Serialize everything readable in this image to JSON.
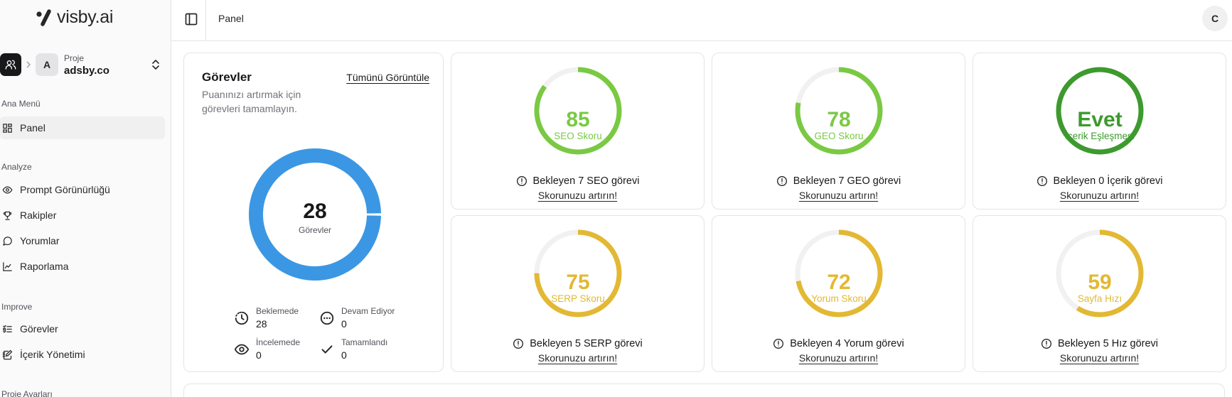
{
  "brand": {
    "logo_text": "visby.ai"
  },
  "project": {
    "caption": "Proje",
    "name": "adsby.co",
    "avatar_letter": "A"
  },
  "sidebar": {
    "sections": [
      {
        "label": "Ana Menü",
        "items": [
          {
            "label": "Panel",
            "icon": "dashboard-icon",
            "active": true
          }
        ]
      },
      {
        "label": "Analyze",
        "items": [
          {
            "label": "Prompt Görünürlüğü",
            "icon": "eye-icon"
          },
          {
            "label": "Rakipler",
            "icon": "trophy-icon"
          },
          {
            "label": "Yorumlar",
            "icon": "message-icon"
          },
          {
            "label": "Raporlama",
            "icon": "chart-icon"
          }
        ]
      },
      {
        "label": "Improve",
        "items": [
          {
            "label": "Görevler",
            "icon": "list-todo-icon"
          },
          {
            "label": "İçerik Yönetimi",
            "icon": "notebook-pen-icon"
          }
        ]
      },
      {
        "label": "Proje Ayarları",
        "items": []
      }
    ]
  },
  "header": {
    "breadcrumb": "Panel",
    "user_initial": "C"
  },
  "tasks": {
    "title": "Görevler",
    "subtitle": "Puanınızı artırmak için görevleri tamamlayın.",
    "view_all": "Tümünü Görüntüle",
    "total": "28",
    "total_label": "Görevler",
    "donut_color": "#3b97e3",
    "stats": {
      "pending": {
        "label": "Beklemede",
        "value": "28"
      },
      "in_progress": {
        "label": "Devam Ediyor",
        "value": "0"
      },
      "review": {
        "label": "İncelemede",
        "value": "0"
      },
      "done": {
        "label": "Tamamlandı",
        "value": "0"
      }
    }
  },
  "scores": [
    {
      "value": "85",
      "fraction": 0.85,
      "label": "SEO Skoru",
      "color": "#7ac943",
      "pending": "Bekleyen 7 SEO görevi",
      "cta": "Skorunuzu artırın!"
    },
    {
      "value": "78",
      "fraction": 0.78,
      "label": "GEO Skoru",
      "color": "#7ac943",
      "pending": "Bekleyen 7 GEO görevi",
      "cta": "Skorunuzu artırın!"
    },
    {
      "value": "Evet",
      "fraction": 1.0,
      "label": "İçerik Eşleşmesi",
      "color": "#3d9a2e",
      "pending": "Bekleyen 0 İçerik görevi",
      "cta": "Skorunuzu artırın!"
    },
    {
      "value": "75",
      "fraction": 0.75,
      "label": "SERP Skoru",
      "color": "#e3b833",
      "pending": "Bekleyen 5 SERP görevi",
      "cta": "Skorunuzu artırın!"
    },
    {
      "value": "72",
      "fraction": 0.72,
      "label": "Yorum Skoru",
      "color": "#e3b833",
      "pending": "Bekleyen 4 Yorum görevi",
      "cta": "Skorunuzu artırın!"
    },
    {
      "value": "59",
      "fraction": 0.59,
      "label": "Sayfa Hızı",
      "color": "#e3b833",
      "pending": "Bekleyen 5 Hız görevi",
      "cta": "Skorunuzu artırın!"
    }
  ]
}
